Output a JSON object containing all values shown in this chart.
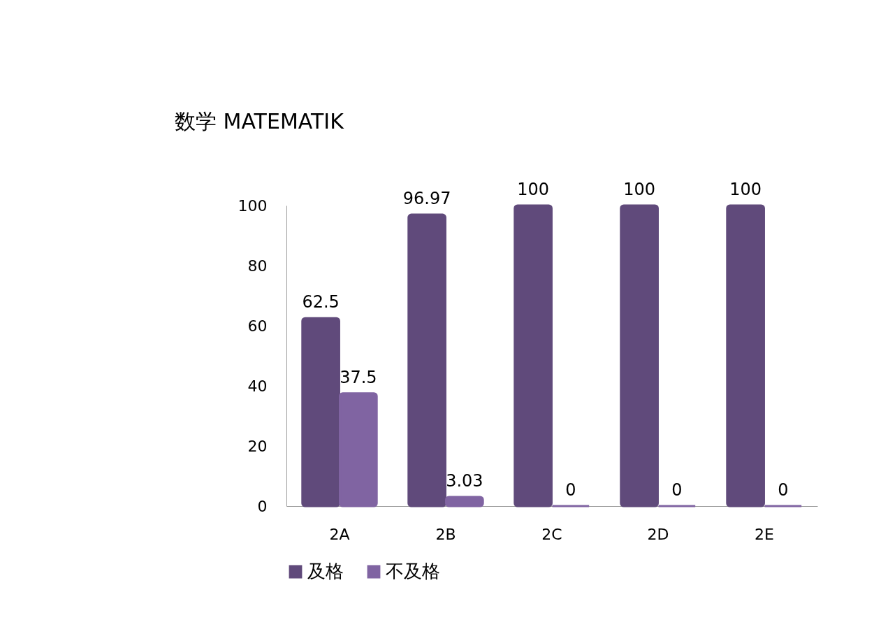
{
  "chart_data": {
    "type": "bar",
    "title": "数学 MATEMATIK",
    "categories": [
      "2A",
      "2B",
      "2C",
      "2D",
      "2E"
    ],
    "series": [
      {
        "name": "及格",
        "color": "#604a7b",
        "values": [
          62.5,
          96.97,
          100,
          100,
          100
        ]
      },
      {
        "name": "不及格",
        "color": "#8064a2",
        "values": [
          37.5,
          3.03,
          0,
          0,
          0
        ]
      }
    ],
    "ylim": [
      0,
      100
    ],
    "yticks": [
      0,
      20,
      40,
      60,
      80,
      100
    ],
    "grid": false,
    "legend": "bottom",
    "data_labels": true
  }
}
